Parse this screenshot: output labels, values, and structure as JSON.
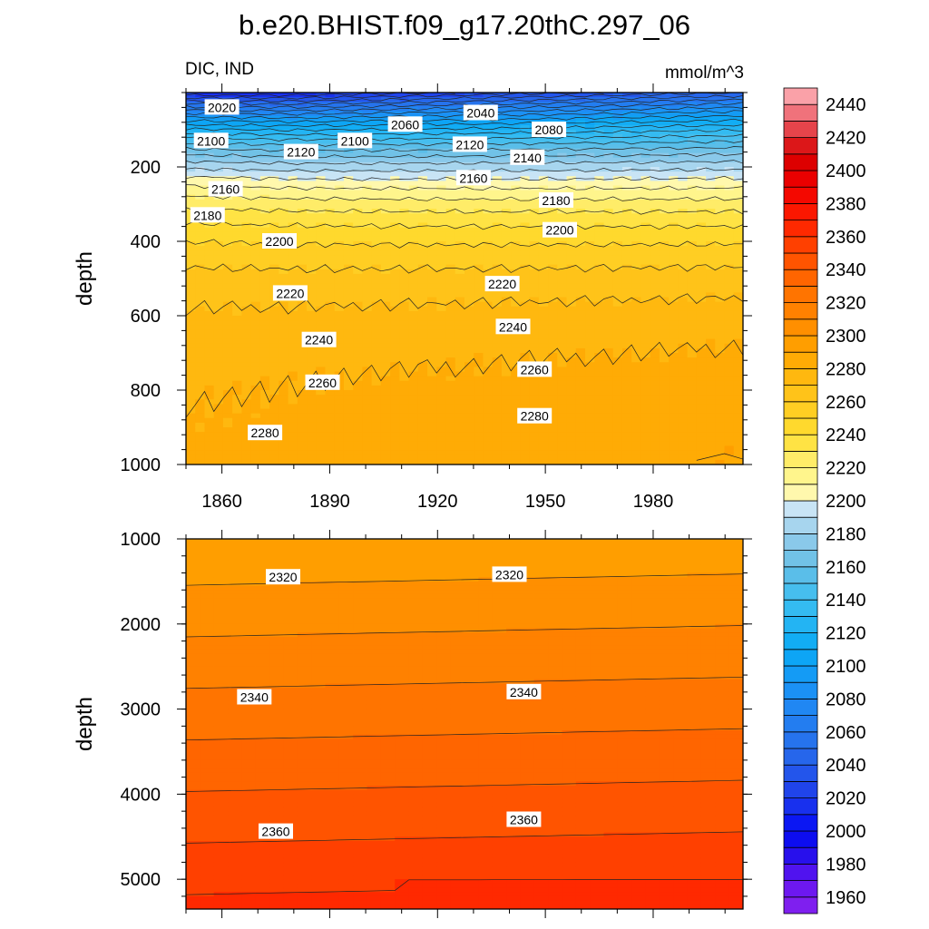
{
  "chart_data": {
    "type": "heatmap",
    "title": "b.e20.BHIST.f09_g17.20thC.297_06",
    "left_label": "DIC, IND",
    "units": "mmol/m^3",
    "ylabel": "depth",
    "xlim": [
      1850,
      2005
    ],
    "xticks": [
      1860,
      1890,
      1920,
      1950,
      1980
    ],
    "colorbar": {
      "min": 1950,
      "max": 2450,
      "step": 10,
      "tick_labels": [
        "1960",
        "1980",
        "2000",
        "2020",
        "2040",
        "2060",
        "2080",
        "2100",
        "2120",
        "2140",
        "2160",
        "2180",
        "2200",
        "2220",
        "2240",
        "2260",
        "2280",
        "2300",
        "2320",
        "2340",
        "2360",
        "2380",
        "2400",
        "2420",
        "2440"
      ]
    },
    "panels": [
      {
        "name": "upper",
        "ylim": [
          0,
          1000
        ],
        "yticks": [
          "200",
          "400",
          "600",
          "800",
          "1000"
        ],
        "ytick_values": [
          200,
          400,
          600,
          800,
          1000
        ],
        "contour_labels": [
          {
            "text": "2020",
            "x": 1860,
            "y": 40
          },
          {
            "text": "2060",
            "x": 1911,
            "y": 86
          },
          {
            "text": "2040",
            "x": 1932,
            "y": 55
          },
          {
            "text": "2080",
            "x": 1951,
            "y": 100
          },
          {
            "text": "2100",
            "x": 1857,
            "y": 130
          },
          {
            "text": "2120",
            "x": 1882,
            "y": 160
          },
          {
            "text": "2100",
            "x": 1897,
            "y": 130
          },
          {
            "text": "2120",
            "x": 1929,
            "y": 140
          },
          {
            "text": "2140",
            "x": 1945,
            "y": 175
          },
          {
            "text": "2160",
            "x": 1861,
            "y": 260
          },
          {
            "text": "2160",
            "x": 1930,
            "y": 230
          },
          {
            "text": "2180",
            "x": 1856,
            "y": 330
          },
          {
            "text": "2180",
            "x": 1953,
            "y": 290
          },
          {
            "text": "2200",
            "x": 1876,
            "y": 400
          },
          {
            "text": "2200",
            "x": 1954,
            "y": 370
          },
          {
            "text": "2220",
            "x": 1879,
            "y": 540
          },
          {
            "text": "2220",
            "x": 1938,
            "y": 515
          },
          {
            "text": "2240",
            "x": 1887,
            "y": 665
          },
          {
            "text": "2240",
            "x": 1941,
            "y": 630
          },
          {
            "text": "2260",
            "x": 1888,
            "y": 780
          },
          {
            "text": "2260",
            "x": 1947,
            "y": 745
          },
          {
            "text": "2280",
            "x": 1872,
            "y": 915
          },
          {
            "text": "2280",
            "x": 1947,
            "y": 870
          }
        ]
      },
      {
        "name": "lower",
        "ylim": [
          1000,
          5350
        ],
        "yticks": [
          "1000",
          "2000",
          "3000",
          "4000",
          "5000"
        ],
        "ytick_values": [
          1000,
          2000,
          3000,
          4000,
          5000
        ],
        "contour_labels": [
          {
            "text": "2320",
            "x": 1877,
            "y": 1450
          },
          {
            "text": "2320",
            "x": 1940,
            "y": 1420
          },
          {
            "text": "2340",
            "x": 1869,
            "y": 2860
          },
          {
            "text": "2340",
            "x": 1944,
            "y": 2800
          },
          {
            "text": "2360",
            "x": 1875,
            "y": 4440
          },
          {
            "text": "2360",
            "x": 1944,
            "y": 4300
          }
        ]
      }
    ]
  }
}
